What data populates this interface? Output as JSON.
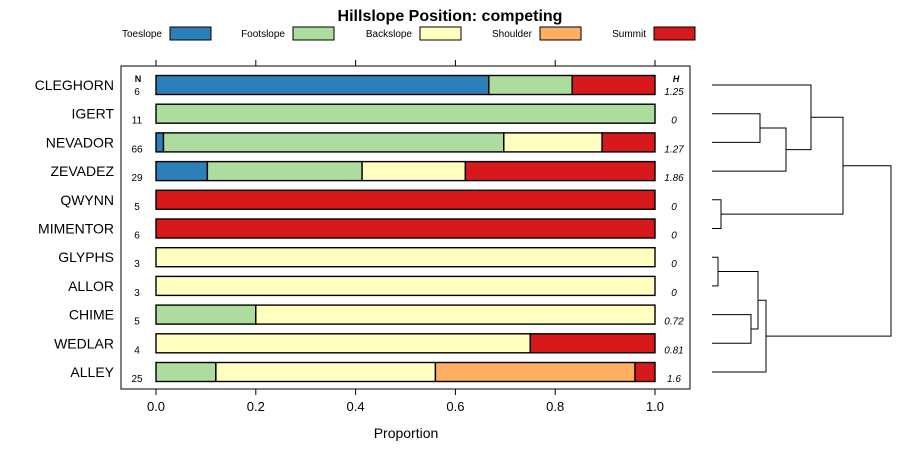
{
  "chart_data": {
    "type": "bar",
    "stacked": true,
    "orientation": "horizontal",
    "title": "Hillslope Position: competing",
    "xlabel": "Proportion",
    "ylabel": "",
    "xlim": [
      0,
      1
    ],
    "xticks": [
      "0.0",
      "0.2",
      "0.4",
      "0.6",
      "0.8",
      "1.0"
    ],
    "legend_position": "top",
    "n_header": "N",
    "h_header": "H",
    "series": [
      {
        "name": "Toeslope",
        "color": "#2c7fb8"
      },
      {
        "name": "Footslope",
        "color": "#addd9e"
      },
      {
        "name": "Backslope",
        "color": "#ffffbf"
      },
      {
        "name": "Shoulder",
        "color": "#fdae61"
      },
      {
        "name": "Summit",
        "color": "#d7191c"
      }
    ],
    "rows": [
      {
        "label": "CLEGHORN",
        "n": "6",
        "h": "1.25",
        "values": [
          0.667,
          0.167,
          0,
          0,
          0.166
        ]
      },
      {
        "label": "IGERT",
        "n": "11",
        "h": "0",
        "values": [
          0,
          1.0,
          0,
          0,
          0
        ]
      },
      {
        "label": "NEVADOR",
        "n": "66",
        "h": "1.27",
        "values": [
          0.015,
          0.682,
          0.197,
          0,
          0.106
        ]
      },
      {
        "label": "ZEVADEZ",
        "n": "29",
        "h": "1.86",
        "values": [
          0.103,
          0.31,
          0.207,
          0,
          0.38
        ]
      },
      {
        "label": "QWYNN",
        "n": "5",
        "h": "0",
        "values": [
          0,
          0,
          0,
          0,
          1.0
        ]
      },
      {
        "label": "MIMENTOR",
        "n": "6",
        "h": "0",
        "values": [
          0,
          0,
          0,
          0,
          1.0
        ]
      },
      {
        "label": "GLYPHS",
        "n": "3",
        "h": "0",
        "values": [
          0,
          0,
          1.0,
          0,
          0
        ]
      },
      {
        "label": "ALLOR",
        "n": "3",
        "h": "0",
        "values": [
          0,
          0,
          1.0,
          0,
          0
        ]
      },
      {
        "label": "CHIME",
        "n": "5",
        "h": "0.72",
        "values": [
          0,
          0.2,
          0.8,
          0,
          0
        ]
      },
      {
        "label": "WEDLAR",
        "n": "4",
        "h": "0.81",
        "values": [
          0,
          0,
          0.75,
          0,
          0.25
        ]
      },
      {
        "label": "ALLEY",
        "n": "25",
        "h": "1.6",
        "values": [
          0,
          0.12,
          0.44,
          0.4,
          0.04
        ]
      }
    ]
  }
}
